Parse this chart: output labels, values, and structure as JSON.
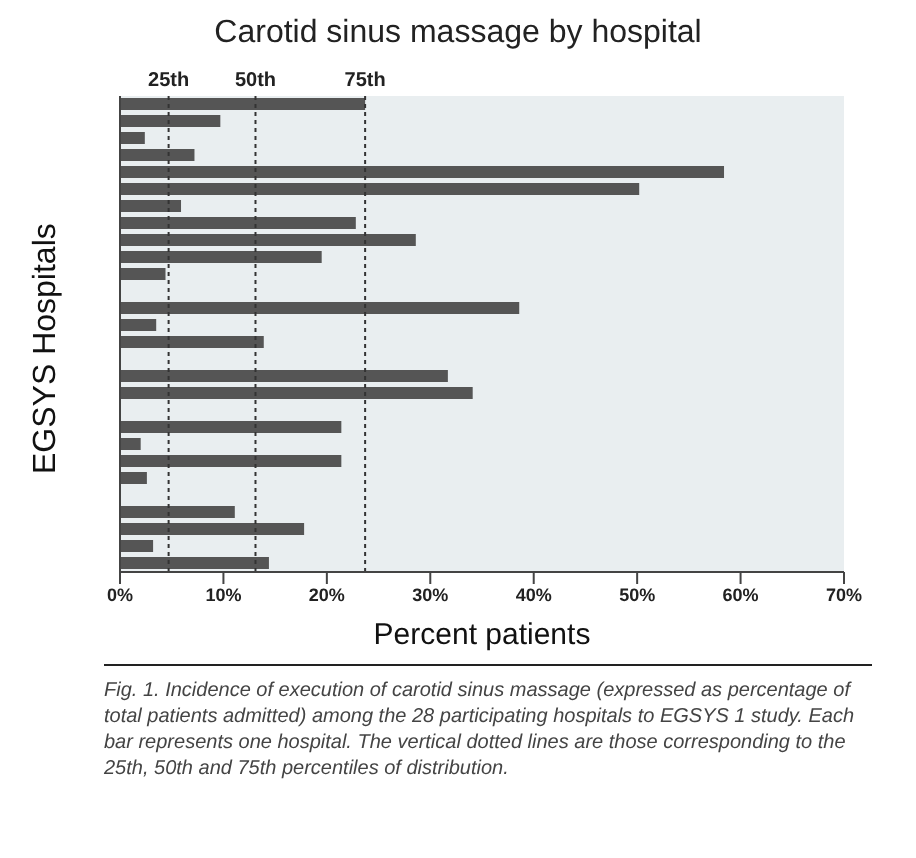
{
  "chart_data": {
    "type": "bar",
    "orientation": "horizontal",
    "title": "Carotid sinus massage by hospital",
    "xlabel": "Percent patients",
    "ylabel": "EGSYS Hospitals",
    "categories": [
      null,
      null,
      null,
      null,
      null,
      null,
      null,
      null,
      null,
      null,
      null,
      null,
      null,
      null,
      null,
      null,
      null,
      null,
      null,
      null,
      null,
      null,
      null,
      null,
      null,
      null,
      null,
      null
    ],
    "values": [
      23.7,
      9.7,
      2.4,
      7.2,
      58.4,
      50.2,
      5.9,
      22.8,
      28.6,
      19.5,
      4.4,
      0,
      38.6,
      3.5,
      13.9,
      0,
      31.7,
      34.1,
      0,
      21.4,
      2.0,
      21.4,
      2.6,
      0,
      11.1,
      17.8,
      3.2,
      14.4
    ],
    "color": "#555555",
    "xlim": [
      0,
      70
    ],
    "xticks": [
      {
        "value": 0,
        "label": "0%"
      },
      {
        "value": 10,
        "label": "10%"
      },
      {
        "value": 20,
        "label": "20%"
      },
      {
        "value": 30,
        "label": "30%"
      },
      {
        "value": 40,
        "label": "40%"
      },
      {
        "value": 50,
        "label": "50%"
      },
      {
        "value": 60,
        "label": "60%"
      },
      {
        "value": 70,
        "label": "70%"
      }
    ],
    "tick_labels": "x",
    "grid": false,
    "legend": false,
    "ref_lines": [
      {
        "axis": "x",
        "value": 4.7,
        "label": "25th",
        "color": "#333333",
        "line_style": "dotted"
      },
      {
        "axis": "x",
        "value": 13.1,
        "label": "50th",
        "color": "#333333",
        "line_style": "dotted"
      },
      {
        "axis": "x",
        "value": 23.7,
        "label": "75th",
        "color": "#333333",
        "line_style": "dotted"
      }
    ],
    "annotations": [
      "Fig. 1. Incidence of execution of carotid sinus massage (expressed as percentage of total patients admitted) among the 28 participating hospitals to EGSYS 1 study. Each bar represents one hospital. The vertical dotted lines are those corresponding to the 25th, 50th and 75th percentiles of distribution."
    ]
  }
}
